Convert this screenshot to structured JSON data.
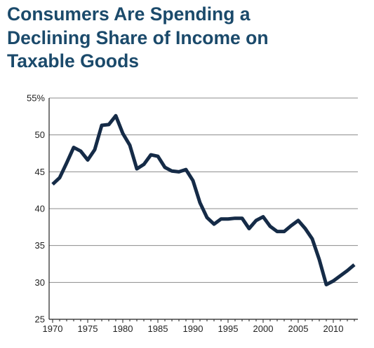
{
  "chart_data": {
    "type": "line",
    "title": "Consumers Are Spending a Declining Share of Income on Taxable Goods",
    "xlabel": "",
    "ylabel": "",
    "xlim": [
      1969.5,
      2013.5
    ],
    "ylim": [
      25,
      55
    ],
    "x_ticks": [
      1970,
      1975,
      1980,
      1985,
      1990,
      1995,
      2000,
      2005,
      2010
    ],
    "y_ticks": [
      {
        "value": 25,
        "label": "25"
      },
      {
        "value": 30,
        "label": "30"
      },
      {
        "value": 35,
        "label": "35"
      },
      {
        "value": 40,
        "label": "40"
      },
      {
        "value": 45,
        "label": "45"
      },
      {
        "value": 50,
        "label": "50"
      },
      {
        "value": 55,
        "label": "55%"
      }
    ],
    "grid": true,
    "line_color": "#152b47",
    "series": [
      {
        "x": [
          1970,
          1971,
          1972,
          1973,
          1974,
          1975,
          1976,
          1977,
          1978,
          1979,
          1980,
          1981,
          1982,
          1983,
          1984,
          1985,
          1986,
          1987,
          1988,
          1989,
          1990,
          1991,
          1992,
          1993,
          1994,
          1995,
          1996,
          1997,
          1998,
          1999,
          2000,
          2001,
          2002,
          2003,
          2004,
          2005,
          2006,
          2007,
          2008,
          2009,
          2010,
          2011,
          2012,
          2013
        ],
        "values": [
          43.3,
          44.2,
          46.2,
          48.3,
          47.8,
          46.6,
          48.0,
          51.3,
          51.4,
          52.6,
          50.2,
          48.6,
          45.4,
          46.0,
          47.3,
          47.1,
          45.6,
          45.1,
          45.0,
          45.3,
          43.8,
          40.8,
          38.8,
          37.9,
          38.6,
          38.6,
          38.7,
          38.7,
          37.3,
          38.4,
          38.9,
          37.6,
          36.9,
          36.9,
          37.7,
          38.4,
          37.3,
          35.9,
          33.1,
          29.7,
          30.2,
          30.9,
          31.6,
          32.4
        ]
      }
    ]
  }
}
